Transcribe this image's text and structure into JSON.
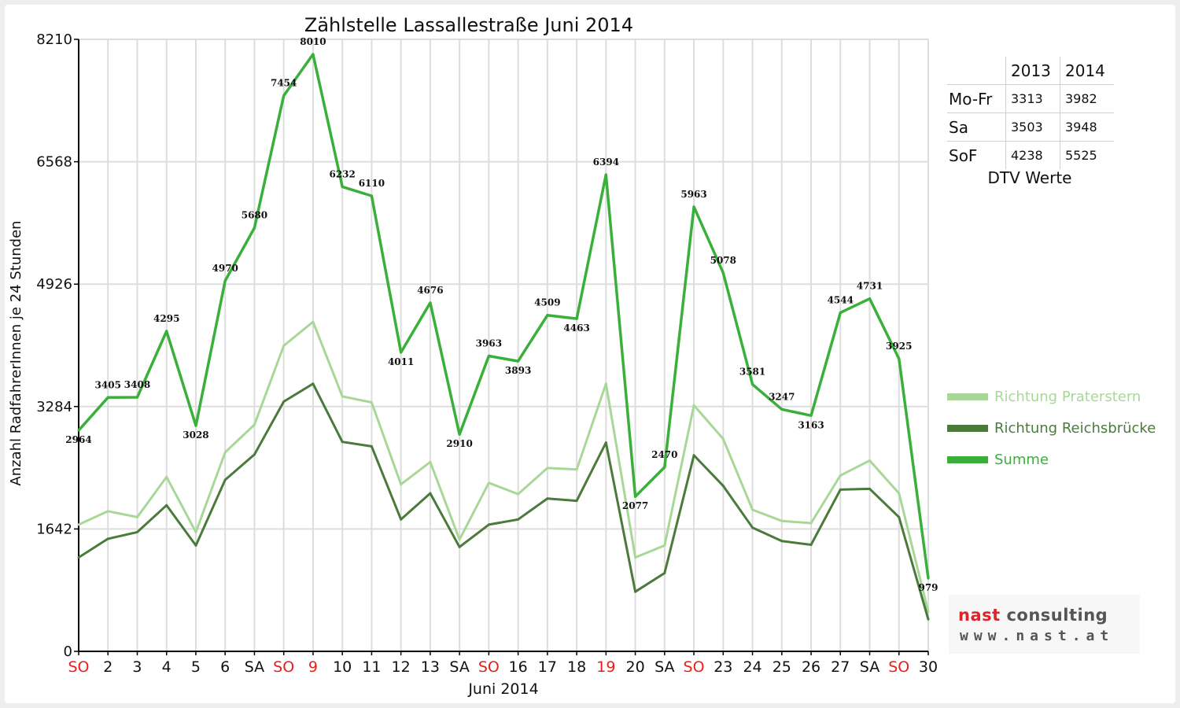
{
  "chart_data": {
    "type": "line",
    "title": "Zählstelle Lassallestraße Juni 2014",
    "xlabel": "Juni 2014",
    "ylabel": "Anzahl RadfahrerInnen je 24 Stunden",
    "ylim": [
      0,
      8210
    ],
    "yticks": [
      "0",
      "1642",
      "3284",
      "4926",
      "6568",
      "8210"
    ],
    "categories": [
      "SO",
      "2",
      "3",
      "4",
      "5",
      "6",
      "SA",
      "SO",
      "9",
      "10",
      "11",
      "12",
      "13",
      "SA",
      "SO",
      "16",
      "17",
      "18",
      "19",
      "20",
      "SA",
      "SO",
      "23",
      "24",
      "25",
      "26",
      "27",
      "SA",
      "SO",
      "30"
    ],
    "highlight_categories": [
      0,
      7,
      8,
      14,
      18,
      21,
      28
    ],
    "grid": true,
    "legend_position": "right",
    "series": [
      {
        "name": "Richtung Praterstern",
        "color": "#a8d898",
        "values": [
          1700,
          1880,
          1800,
          2340,
          1600,
          2670,
          3040,
          4100,
          4420,
          3420,
          3340,
          2240,
          2540,
          1500,
          2260,
          2110,
          2460,
          2440,
          3590,
          1260,
          1420,
          3300,
          2850,
          1900,
          1750,
          1720,
          2360,
          2560,
          2120,
          530
        ]
      },
      {
        "name": "Richtung Reichsbrücke",
        "color": "#4b7b3b",
        "values": [
          1260,
          1510,
          1600,
          1960,
          1420,
          2300,
          2640,
          3350,
          3590,
          2810,
          2750,
          1770,
          2120,
          1400,
          1700,
          1770,
          2050,
          2020,
          2800,
          800,
          1050,
          2630,
          2220,
          1660,
          1480,
          1430,
          2170,
          2180,
          1800,
          430
        ]
      },
      {
        "name": "Summe",
        "color": "#3ab03a",
        "values": [
          2964,
          3405,
          3408,
          4295,
          3028,
          4970,
          5680,
          7454,
          8010,
          6232,
          6110,
          4011,
          4676,
          2910,
          3963,
          3893,
          4509,
          4463,
          6394,
          2077,
          2470,
          5963,
          5078,
          3581,
          3247,
          3163,
          4544,
          4731,
          3925,
          979
        ],
        "labels": [
          "2964",
          "3405",
          "3408",
          "4295",
          "3028",
          "4970",
          "5680",
          "7454",
          "8010",
          "6232",
          "6110",
          "4011",
          "4676",
          "2910",
          "3963",
          "3893",
          "4509",
          "4463",
          "6394",
          "2077",
          "2470",
          "5963",
          "5078",
          "3581",
          "3247",
          "3163",
          "4544",
          "4731",
          "3925",
          "979"
        ]
      }
    ]
  },
  "dtv_table": {
    "headers": [
      "",
      "2013",
      "2014"
    ],
    "rows": [
      {
        "label": "Mo-Fr",
        "v2013": "3313",
        "v2014": "3982"
      },
      {
        "label": "Sa",
        "v2013": "3503",
        "v2014": "3948"
      },
      {
        "label": "SoF",
        "v2013": "4238",
        "v2014": "5525"
      }
    ],
    "caption": "DTV Werte"
  },
  "logo": {
    "line1_a": "nast",
    "line1_b": " consulting",
    "line2": "www.nast.at"
  },
  "colors": {
    "highlight_tick": "#e8201c",
    "grid": "#dddddd",
    "axis": "#000000"
  }
}
